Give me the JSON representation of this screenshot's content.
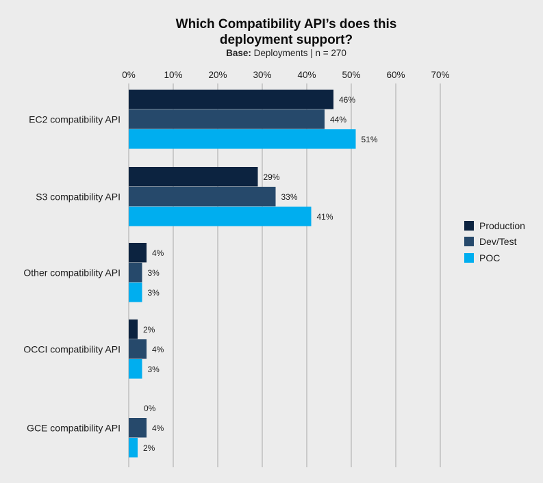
{
  "chart_data": {
    "type": "bar",
    "orientation": "horizontal",
    "title": "Which Compatibility API’s does this deployment support?",
    "title_lines": [
      "Which Compatibility API’s does this",
      "deployment support?"
    ],
    "subtitle": {
      "base_label": "Base:",
      "base_text": "Deployments  |  n = 270"
    },
    "categories": [
      "EC2 compatibility API",
      "S3 compatibility API",
      "Other compatibility API",
      "OCCI compatibility API",
      "GCE compatibility API"
    ],
    "series": [
      {
        "name": "Production",
        "color": "#0c2340",
        "values": [
          46,
          29,
          4,
          2,
          0
        ]
      },
      {
        "name": "Dev/Test",
        "color": "#26496b",
        "values": [
          44,
          33,
          3,
          4,
          4
        ]
      },
      {
        "name": "POC",
        "color": "#00aeef",
        "values": [
          51,
          41,
          3,
          3,
          2
        ]
      }
    ],
    "x_ticks": [
      0,
      10,
      20,
      30,
      40,
      50,
      60,
      70
    ],
    "x_tick_suffix": "%",
    "xlim": [
      0,
      70
    ],
    "value_suffix": "%",
    "grid": true,
    "legend_position": "right"
  }
}
